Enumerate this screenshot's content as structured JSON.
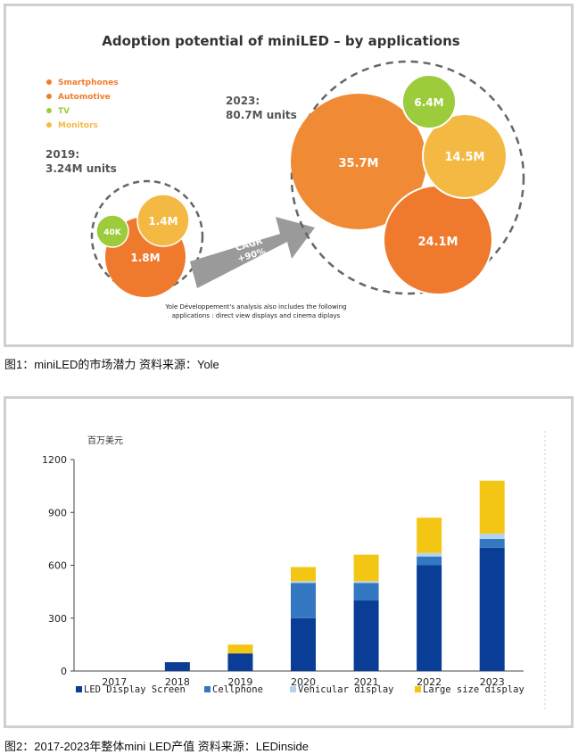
{
  "fig1": {
    "chart_data": {
      "type": "bubble",
      "title": "Adoption potential of miniLED – by applications",
      "legend": [
        {
          "name": "Smartphones",
          "color": "#ef7c2b"
        },
        {
          "name": "Automotive",
          "color": "#ef7c2b"
        },
        {
          "name": "TV",
          "color": "#9ccc3c"
        },
        {
          "name": "Monitors",
          "color": "#f4b942"
        }
      ],
      "groups": [
        {
          "label_year": "2019:",
          "label_total": "3.24M units",
          "bubbles": [
            {
              "label": "1.8M",
              "color": "#ef7a2e"
            },
            {
              "label": "1.4M",
              "color": "#f4b942"
            },
            {
              "label": "40K",
              "color": "#9ccc3c"
            }
          ]
        },
        {
          "label_year": "2023:",
          "label_total": "80.7M units",
          "bubbles": [
            {
              "label": "35.7M",
              "color": "#f08a35"
            },
            {
              "label": "24.1M",
              "color": "#ef7a2e"
            },
            {
              "label": "14.5M",
              "color": "#f4b942"
            },
            {
              "label": "6.4M",
              "color": "#9ccc3c"
            }
          ]
        }
      ],
      "arrow_text": [
        "CAGR",
        "+90%"
      ],
      "note": [
        "Yole Développement's analysis also includes the following",
        "applications : direct view displays and cinema diplays"
      ]
    }
  },
  "caption1": "图1：miniLED的市场潜力  资料来源：Yole",
  "fig2": {
    "chart_data": {
      "type": "bar",
      "stacked": true,
      "unit_label": "百万美元",
      "categories": [
        "2017",
        "2018",
        "2019",
        "2020",
        "2021",
        "2022",
        "2023"
      ],
      "ylim": [
        0,
        1200
      ],
      "yticks": [
        0,
        300,
        600,
        900,
        1200
      ],
      "series": [
        {
          "name": "LED Display Screen",
          "color": "#0a3d96",
          "values": [
            0,
            50,
            100,
            300,
            400,
            600,
            700
          ]
        },
        {
          "name": "Cellphone",
          "color": "#3378c0",
          "values": [
            0,
            0,
            0,
            200,
            100,
            50,
            50
          ]
        },
        {
          "name": "Vehicular display",
          "color": "#b6d3ee",
          "values": [
            0,
            0,
            0,
            10,
            10,
            20,
            30
          ]
        },
        {
          "name": "Large size display",
          "color": "#f4c614",
          "values": [
            0,
            0,
            50,
            80,
            150,
            200,
            300
          ]
        }
      ]
    }
  },
  "caption2": "图2：2017-2023年整体mini LED产值  资料来源：LEDinside"
}
